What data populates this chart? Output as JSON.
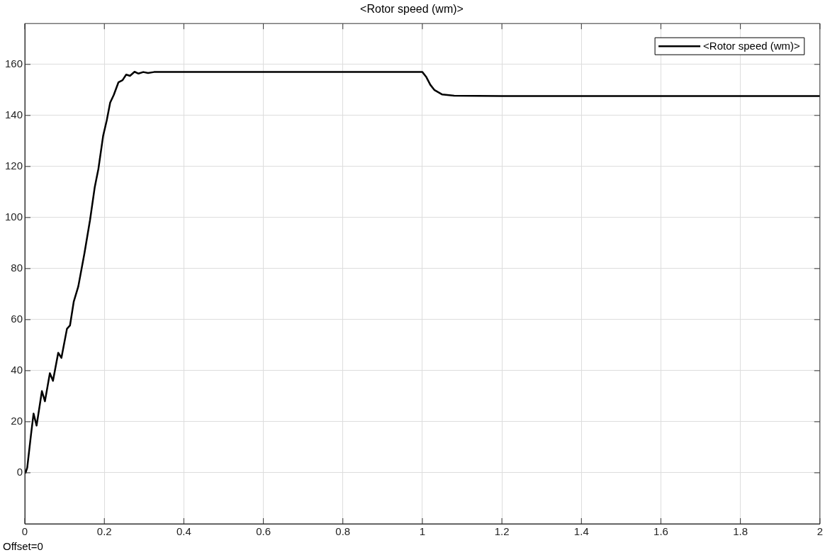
{
  "chart_data": {
    "type": "line",
    "title": "<Rotor speed (wm)>",
    "annotations": [
      "Offset=0"
    ],
    "xlim": [
      0,
      2
    ],
    "xticks": [
      0,
      0.2,
      0.4,
      0.6,
      0.8,
      1,
      1.2,
      1.4,
      1.6,
      1.8,
      2
    ],
    "ylim": [
      -20,
      176
    ],
    "yticks": [
      0,
      20,
      40,
      60,
      80,
      100,
      120,
      140,
      160
    ],
    "grid": true,
    "legend": "top right",
    "marker": "none",
    "line_style": "solid",
    "series": [
      {
        "name": "<Rotor speed (wm)>",
        "color": "#000000",
        "x": [
          0,
          0.002,
          0.006,
          0.0156,
          0.022,
          0.0296,
          0.043,
          0.0506,
          0.063,
          0.0708,
          0.084,
          0.092,
          0.106,
          0.1136,
          0.123,
          0.1345,
          0.15,
          0.164,
          0.176,
          0.185,
          0.197,
          0.206,
          0.2147,
          0.2237,
          0.2356,
          0.2458,
          0.255,
          0.2645,
          0.276,
          0.286,
          0.298,
          0.31,
          0.325,
          0.4,
          0.6,
          0.8,
          1,
          1.01,
          1.02,
          1.03,
          1.05,
          1.08,
          1.2,
          1.6,
          2
        ],
        "values": [
          0,
          0,
          2,
          15,
          23.2,
          18.5,
          32,
          28,
          39,
          36,
          47,
          45,
          56.4,
          57.7,
          67,
          73,
          86,
          99,
          112,
          119,
          132,
          138,
          145,
          148,
          153,
          153.8,
          156,
          155.5,
          157.1,
          156.4,
          157,
          156.6,
          157,
          157,
          157,
          157,
          157,
          155,
          152,
          150,
          148.2,
          147.7,
          147.6,
          147.6,
          147.6
        ]
      }
    ]
  }
}
